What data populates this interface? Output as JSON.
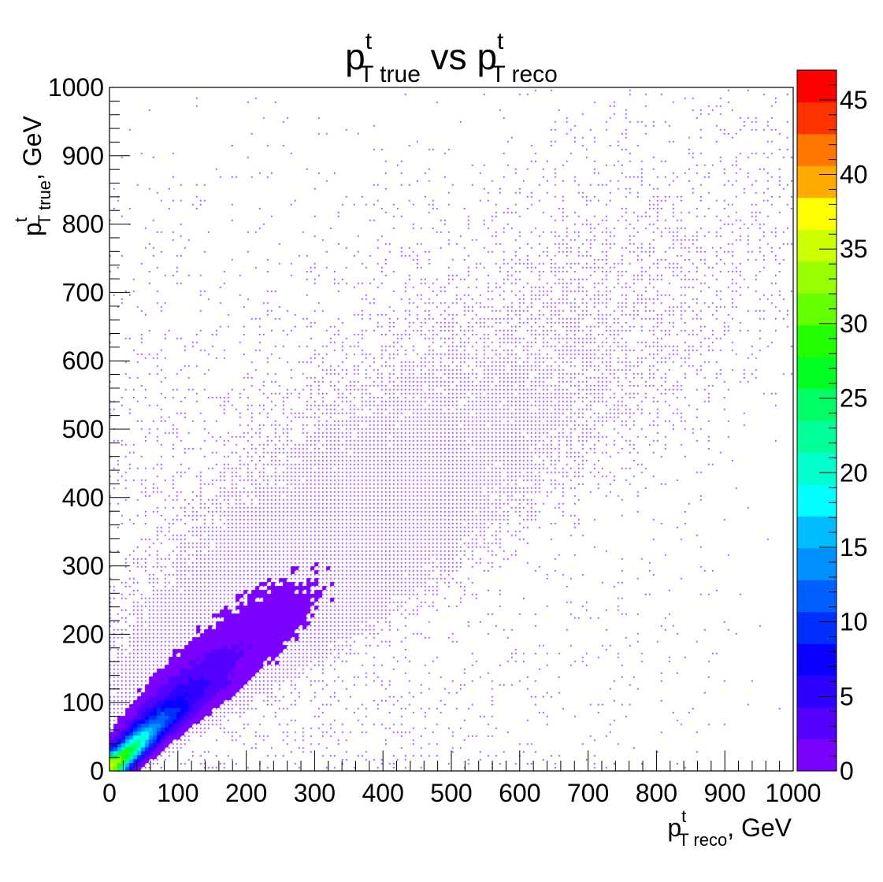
{
  "chart_data": {
    "type": "heatmap",
    "title": {
      "p1": "p",
      "p1_sup": "t",
      "p1_sub": "T true",
      "mid": " vs ",
      "p2": "p",
      "p2_sup": "t",
      "p2_sub": "T reco"
    },
    "xlabel": {
      "p": "p",
      "sup": "t",
      "sub": "T reco",
      "unit": ",  GeV"
    },
    "ylabel": {
      "p": "p",
      "sup": "t",
      "sub": "T true",
      "unit": ",  GeV"
    },
    "xlim": [
      0,
      1000
    ],
    "ylim": [
      0,
      1000
    ],
    "x_ticks": [
      "0",
      "100",
      "200",
      "300",
      "400",
      "500",
      "600",
      "700",
      "800",
      "900",
      "1000"
    ],
    "y_ticks": [
      "0",
      "100",
      "200",
      "300",
      "400",
      "500",
      "600",
      "700",
      "800",
      "900",
      "1000"
    ],
    "zlim": [
      0,
      47
    ],
    "z_ticks": [
      "0",
      "5",
      "10",
      "15",
      "20",
      "25",
      "30",
      "35",
      "40",
      "45"
    ],
    "colorbar_palette": [
      "#7b00ff",
      "#5500ff",
      "#2f00ff",
      "#0a00ff",
      "#0030ff",
      "#0060ff",
      "#0090ff",
      "#00bbff",
      "#00ffff",
      "#00ffcc",
      "#00ff99",
      "#00ff66",
      "#00ff22",
      "#22ff00",
      "#66ff00",
      "#99ff00",
      "#ccff00",
      "#ffff00",
      "#ffaa00",
      "#ff7700",
      "#ff3300",
      "#ff0000"
    ],
    "density": {
      "description_core": "dense correlated band along diagonal, peak near (70,70) at ~35 counts",
      "peak": [
        70,
        70
      ],
      "peak_value": 35,
      "band_extent": [
        [
          0,
          0
        ],
        [
          450,
          450
        ]
      ]
    },
    "grid": false,
    "legend": "colorbar-right"
  }
}
